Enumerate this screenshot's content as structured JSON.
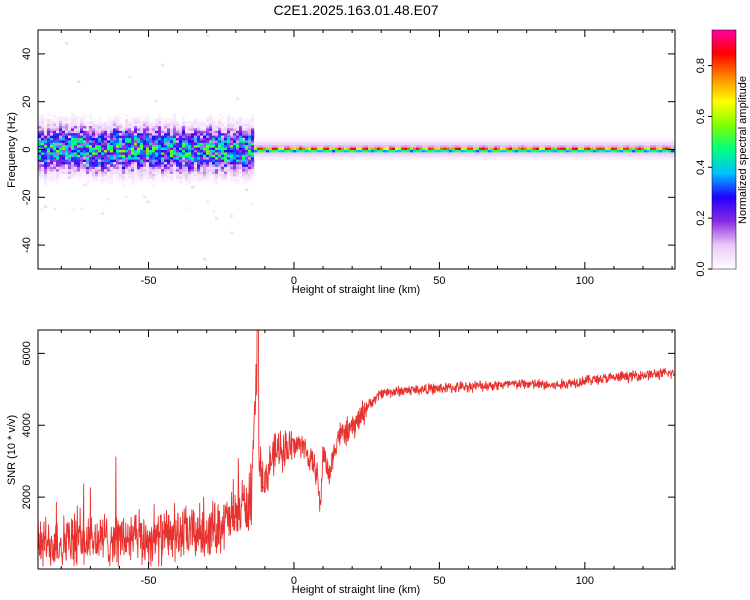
{
  "title": "C2E1.2025.163.01.48.E07",
  "chart_data": [
    {
      "type": "heatmap",
      "xlabel": "Height of straight line (km)",
      "ylabel": "Frequency (Hz)",
      "xlim": [
        -88,
        131
      ],
      "ylim": [
        -50,
        50
      ],
      "x_ticks": [
        -50,
        0,
        50,
        100
      ],
      "y_ticks": [
        -40,
        -20,
        0,
        20,
        40
      ],
      "colorbar": {
        "label": "Normalized spectral amplitude",
        "range": [
          0.0,
          0.94
        ],
        "ticks": [
          0.0,
          0.2,
          0.4,
          0.6,
          0.8
        ],
        "colormap": [
          "#ffffff",
          "#e9c8f6",
          "#8a2be2",
          "#2200ff",
          "#00bfff",
          "#00ff80",
          "#7fff00",
          "#ffff00",
          "#ff8c00",
          "#ff0000",
          "#ff00a0"
        ]
      },
      "description_points": {
        "band_center_hz": 0,
        "noisy_region_km": [
          -88,
          -14
        ],
        "noisy_halfwidth_hz": 10,
        "clean_region_km": [
          -14,
          131
        ],
        "clean_halfwidth_hz": 3
      }
    },
    {
      "type": "line",
      "xlabel": "Height of straight line (km)",
      "ylabel": "SNR (10 * v/v)",
      "xlim": [
        -88,
        131
      ],
      "ylim": [
        0,
        6650
      ],
      "x_ticks": [
        -50,
        0,
        50,
        100
      ],
      "y_ticks": [
        2000,
        4000,
        6000
      ],
      "line_color": "#e8322f",
      "series": [
        {
          "x": [
            -88,
            -80,
            -70,
            -60,
            -50,
            -40,
            -30,
            -25,
            -20,
            -17,
            -15,
            -13,
            -12,
            -10,
            -8,
            -5,
            0,
            3,
            5,
            8,
            9,
            10,
            12,
            15,
            18,
            20,
            25,
            30,
            40,
            50,
            60,
            70,
            80,
            90,
            100,
            110,
            120,
            131
          ],
          "values": [
            700,
            750,
            800,
            850,
            800,
            950,
            1050,
            1250,
            1450,
            1900,
            1300,
            5200,
            3000,
            2400,
            3000,
            3350,
            3400,
            3500,
            3100,
            2700,
            1600,
            3300,
            2600,
            3700,
            3800,
            3900,
            4500,
            4900,
            4980,
            5020,
            5080,
            5120,
            5150,
            5100,
            5250,
            5320,
            5400,
            5450
          ]
        }
      ]
    }
  ]
}
